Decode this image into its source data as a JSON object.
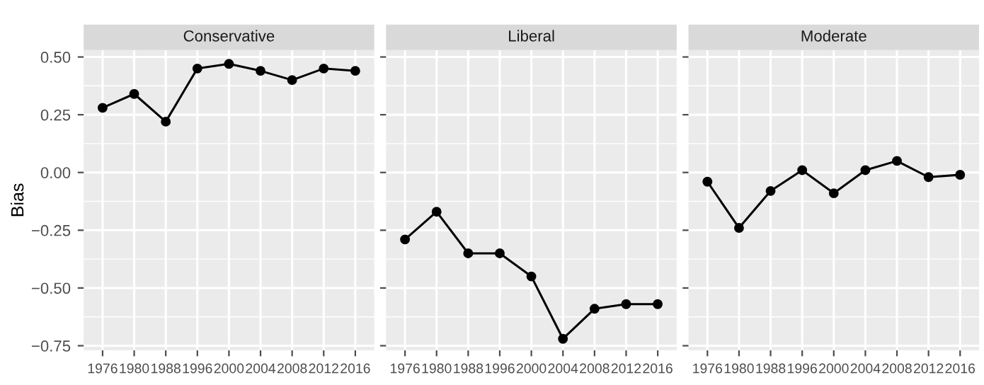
{
  "chart_data": [
    {
      "type": "line",
      "title": "Conservative",
      "ylabel": "Bias",
      "categories": [
        "1976",
        "1980",
        "1988",
        "1996",
        "2000",
        "2004",
        "2008",
        "2012",
        "2016"
      ],
      "values": [
        0.28,
        0.34,
        0.22,
        0.45,
        0.47,
        0.44,
        0.4,
        0.45,
        0.44
      ],
      "color": "#000000",
      "marker": "circle",
      "ylim": [
        -0.77,
        0.53
      ],
      "yticks": [
        {
          "value": 0.5,
          "label": "0.50"
        },
        {
          "value": 0.25,
          "label": "0.25"
        },
        {
          "value": 0,
          "label": "0.00"
        },
        {
          "value": -0.25,
          "label": "−0.25"
        },
        {
          "value": -0.5,
          "label": "−0.50"
        },
        {
          "value": -0.75,
          "label": "−0.75"
        }
      ],
      "grid": true
    },
    {
      "type": "line",
      "title": "Liberal",
      "categories": [
        "1976",
        "1980",
        "1988",
        "1996",
        "2000",
        "2004",
        "2008",
        "2012",
        "2016"
      ],
      "values": [
        -0.29,
        -0.17,
        -0.35,
        -0.35,
        -0.45,
        -0.72,
        -0.59,
        -0.57,
        -0.57
      ],
      "color": "#000000",
      "marker": "circle",
      "ylim": [
        -0.77,
        0.53
      ],
      "yticks": [
        0.5,
        0.25,
        0,
        -0.25,
        -0.5,
        -0.75
      ],
      "grid": true,
      "tick_labels": "x"
    },
    {
      "type": "line",
      "title": "Moderate",
      "categories": [
        "1976",
        "1980",
        "1988",
        "1996",
        "2000",
        "2004",
        "2008",
        "2012",
        "2016"
      ],
      "values": [
        -0.04,
        -0.24,
        -0.08,
        0.01,
        -0.09,
        0.01,
        0.05,
        -0.02,
        -0.01
      ],
      "color": "#000000",
      "marker": "circle",
      "ylim": [
        -0.77,
        0.53
      ],
      "yticks": [
        0.5,
        0.25,
        0,
        -0.25,
        -0.5,
        -0.75
      ],
      "grid": true,
      "tick_labels": "x"
    }
  ]
}
